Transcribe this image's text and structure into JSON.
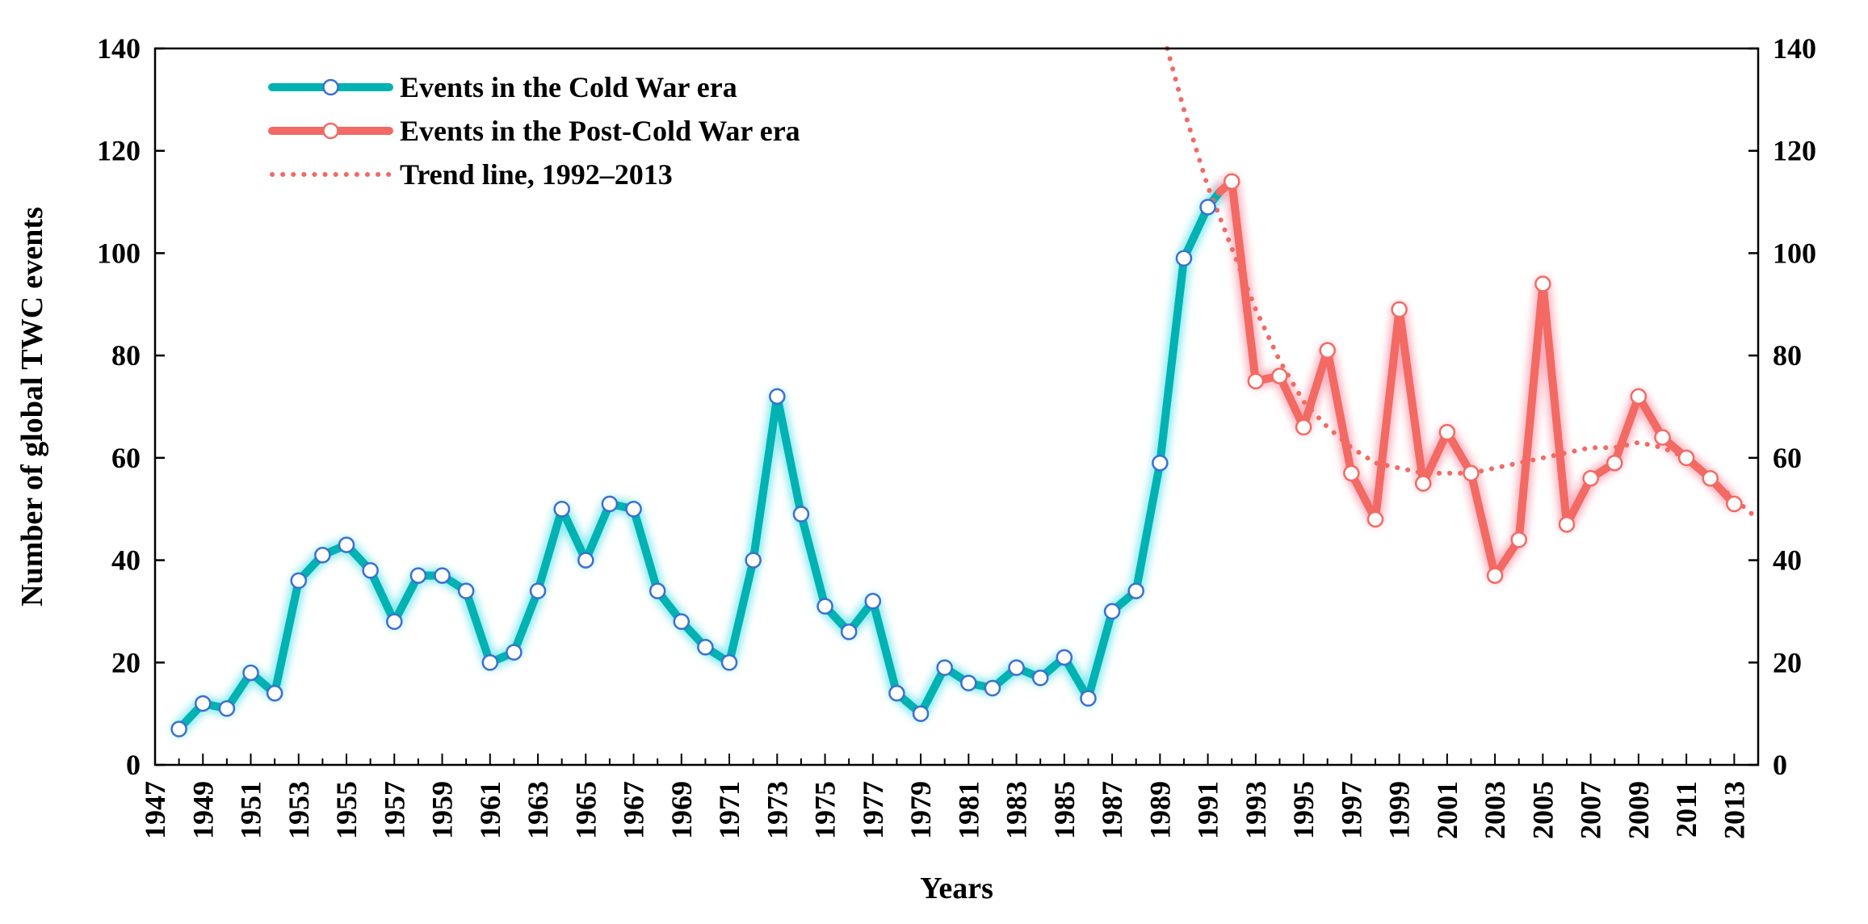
{
  "chart_data": {
    "type": "line",
    "title": "",
    "xlabel": "Years",
    "ylabel": "Number of global TWC events",
    "ylim": [
      0,
      140
    ],
    "yticks": [
      0,
      20,
      40,
      60,
      80,
      100,
      120,
      140
    ],
    "xlim": [
      1947,
      2014
    ],
    "xticks": [
      1947,
      1949,
      1951,
      1953,
      1955,
      1957,
      1959,
      1961,
      1963,
      1965,
      1967,
      1969,
      1971,
      1973,
      1975,
      1977,
      1979,
      1981,
      1983,
      1985,
      1987,
      1989,
      1991,
      1993,
      1995,
      1997,
      1999,
      2001,
      2003,
      2005,
      2007,
      2009,
      2011,
      2013
    ],
    "grid": false,
    "legend_position": "top-left",
    "series": [
      {
        "name": "Events in the Cold War era",
        "color": "#00B2B2",
        "marker": "circle",
        "x": [
          1948,
          1949,
          1950,
          1951,
          1952,
          1953,
          1954,
          1955,
          1956,
          1957,
          1958,
          1959,
          1960,
          1961,
          1962,
          1963,
          1964,
          1965,
          1966,
          1967,
          1968,
          1969,
          1970,
          1971,
          1972,
          1973,
          1974,
          1975,
          1976,
          1977,
          1978,
          1979,
          1980,
          1981,
          1982,
          1983,
          1984,
          1985,
          1986,
          1987,
          1988,
          1989,
          1990,
          1991
        ],
        "values": [
          7,
          12,
          11,
          18,
          14,
          36,
          41,
          43,
          38,
          28,
          37,
          37,
          34,
          20,
          22,
          34,
          50,
          40,
          51,
          50,
          34,
          28,
          23,
          20,
          40,
          72,
          49,
          31,
          26,
          32,
          14,
          10,
          19,
          16,
          15,
          19,
          17,
          21,
          13,
          30,
          34,
          59,
          99,
          109
        ],
        "line_end": {
          "x": 1991.5,
          "y": 112
        }
      },
      {
        "name": "Events in the Post-Cold War era",
        "color": "#F26A63",
        "marker": "circle",
        "x": [
          1992,
          1993,
          1994,
          1995,
          1996,
          1997,
          1998,
          1999,
          2000,
          2001,
          2002,
          2003,
          2004,
          2005,
          2006,
          2007,
          2008,
          2009,
          2010,
          2011,
          2012,
          2013
        ],
        "values": [
          114,
          75,
          76,
          66,
          81,
          57,
          48,
          89,
          55,
          65,
          57,
          37,
          44,
          94,
          47,
          56,
          59,
          72,
          64,
          60,
          56,
          51
        ],
        "line_start": {
          "x": 1991.5,
          "y": 112
        }
      },
      {
        "name": "Trend line, 1992–2013",
        "color": "#F26A63",
        "style": "dotted",
        "x": [
          1989.3,
          1990,
          1991,
          1992,
          1993,
          1994,
          1995,
          1996,
          1997,
          1998,
          1999,
          2000,
          2001,
          2002,
          2003,
          2004,
          2005,
          2006,
          2007,
          2008,
          2009,
          2010,
          2011,
          2012,
          2013,
          2014
        ],
        "values": [
          140,
          128,
          113,
          101,
          89,
          79,
          71,
          66,
          62,
          59,
          58,
          57,
          57,
          57,
          58,
          59,
          60,
          61,
          62,
          62,
          63,
          62,
          60,
          56,
          52,
          48
        ]
      }
    ]
  }
}
